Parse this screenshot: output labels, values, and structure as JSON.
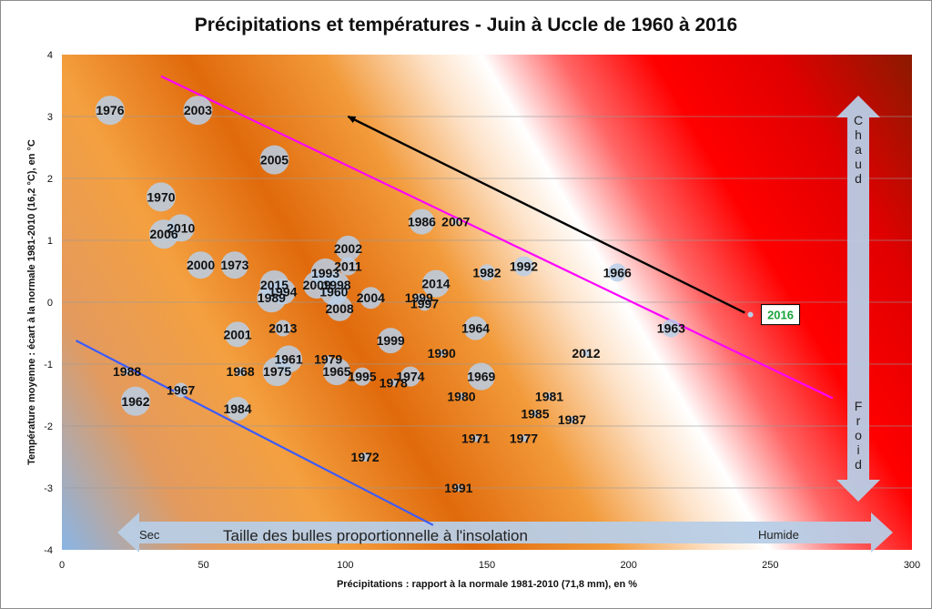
{
  "colors": {
    "magenta_line": "#ff00ff",
    "blue_line": "#3b5bff",
    "bubble": "#b9cfe8",
    "highlight_text": "#1aa33a",
    "arrow_fill": "#b8cde6",
    "dark_red": "#8b1a00",
    "orange": "#e46c0a"
  },
  "chart_data": {
    "type": "scatter",
    "title": "Précipitations et températures - Juin à Uccle de 1960 à 2016",
    "xlabel": "Précipitations : rapport à la normale 1981-2010 (71,8 mm), en %",
    "ylabel": "Température moyenne : écart à  la normale 1981-2010 (16,2 °C), en °C",
    "xlim": [
      0,
      300
    ],
    "ylim": [
      -4,
      4
    ],
    "xticks": [
      "0",
      "50",
      "100",
      "150",
      "200",
      "250",
      "300"
    ],
    "yticks": [
      "4",
      "3",
      "2",
      "1",
      "0",
      "-1",
      "-2",
      "-3",
      "-4"
    ],
    "grid": true,
    "points": [
      {
        "label": "1976",
        "x": 17,
        "y": 3.1,
        "r": 16
      },
      {
        "label": "2003",
        "x": 48,
        "y": 3.1,
        "r": 16
      },
      {
        "label": "2005",
        "x": 75,
        "y": 2.3,
        "r": 16
      },
      {
        "label": "1970",
        "x": 35,
        "y": 1.7,
        "r": 16
      },
      {
        "label": "2010",
        "x": 42,
        "y": 1.2,
        "r": 15
      },
      {
        "label": "2006",
        "x": 36,
        "y": 1.1,
        "r": 16
      },
      {
        "label": "1986",
        "x": 127,
        "y": 1.3,
        "r": 14
      },
      {
        "label": "2007",
        "x": 139,
        "y": 1.3,
        "r": 4
      },
      {
        "label": "2002",
        "x": 101,
        "y": 0.87,
        "r": 14
      },
      {
        "label": "2011",
        "x": 101,
        "y": 0.58,
        "r": 10
      },
      {
        "label": "2000",
        "x": 49,
        "y": 0.6,
        "r": 15
      },
      {
        "label": "1973",
        "x": 61,
        "y": 0.6,
        "r": 15
      },
      {
        "label": "1993",
        "x": 93,
        "y": 0.47,
        "r": 16
      },
      {
        "label": "1982",
        "x": 150,
        "y": 0.48,
        "r": 9
      },
      {
        "label": "1992",
        "x": 163,
        "y": 0.58,
        "r": 11
      },
      {
        "label": "1966",
        "x": 196,
        "y": 0.48,
        "r": 10
      },
      {
        "label": "2014",
        "x": 132,
        "y": 0.3,
        "r": 15
      },
      {
        "label": "2015",
        "x": 75,
        "y": 0.28,
        "r": 16
      },
      {
        "label": "2009",
        "x": 90,
        "y": 0.28,
        "r": 15
      },
      {
        "label": "1998",
        "x": 97,
        "y": 0.28,
        "r": 14
      },
      {
        "label": "1994",
        "x": 78,
        "y": 0.17,
        "r": 14
      },
      {
        "label": "1960",
        "x": 96,
        "y": 0.17,
        "r": 15
      },
      {
        "label": "1989",
        "x": 74,
        "y": 0.07,
        "r": 16
      },
      {
        "label": "2004",
        "x": 109,
        "y": 0.07,
        "r": 12
      },
      {
        "label": "1999",
        "x": 126,
        "y": 0.07,
        "r": 5
      },
      {
        "label": "1997",
        "x": 128,
        "y": -0.02,
        "r": 8
      },
      {
        "label": "2008",
        "x": 98,
        "y": -0.1,
        "r": 14
      },
      {
        "label": "2013",
        "x": 78,
        "y": -0.42,
        "r": 9
      },
      {
        "label": "1964",
        "x": 146,
        "y": -0.42,
        "r": 13
      },
      {
        "label": "1963",
        "x": 215,
        "y": -0.42,
        "r": 10
      },
      {
        "label": "2001",
        "x": 62,
        "y": -0.52,
        "r": 14
      },
      {
        "label": "1999",
        "x": 116,
        "y": -0.62,
        "r": 14
      },
      {
        "label": "1990",
        "x": 134,
        "y": -0.82,
        "r": 4
      },
      {
        "label": "2012",
        "x": 185,
        "y": -0.82,
        "r": 4
      },
      {
        "label": "1961",
        "x": 80,
        "y": -0.92,
        "r": 15
      },
      {
        "label": "1979",
        "x": 94,
        "y": -0.92,
        "r": 4
      },
      {
        "label": "1988",
        "x": 23,
        "y": -1.12,
        "r": 4
      },
      {
        "label": "1968",
        "x": 63,
        "y": -1.12,
        "r": 5
      },
      {
        "label": "1975",
        "x": 76,
        "y": -1.12,
        "r": 16
      },
      {
        "label": "1965",
        "x": 97,
        "y": -1.12,
        "r": 15
      },
      {
        "label": "1995",
        "x": 106,
        "y": -1.2,
        "r": 10
      },
      {
        "label": "1974",
        "x": 123,
        "y": -1.2,
        "r": 11
      },
      {
        "label": "1978",
        "x": 117,
        "y": -1.3,
        "r": 4
      },
      {
        "label": "1969",
        "x": 148,
        "y": -1.2,
        "r": 15
      },
      {
        "label": "1967",
        "x": 42,
        "y": -1.42,
        "r": 8
      },
      {
        "label": "1980",
        "x": 141,
        "y": -1.52,
        "r": 4
      },
      {
        "label": "1981",
        "x": 172,
        "y": -1.52,
        "r": 4
      },
      {
        "label": "1962",
        "x": 26,
        "y": -1.6,
        "r": 16
      },
      {
        "label": "1984",
        "x": 62,
        "y": -1.72,
        "r": 13
      },
      {
        "label": "1985",
        "x": 167,
        "y": -1.8,
        "r": 4
      },
      {
        "label": "1987",
        "x": 180,
        "y": -1.9,
        "r": 4
      },
      {
        "label": "1971",
        "x": 146,
        "y": -2.2,
        "r": 4
      },
      {
        "label": "1977",
        "x": 163,
        "y": -2.2,
        "r": 4
      },
      {
        "label": "1972",
        "x": 107,
        "y": -2.5,
        "r": 5
      },
      {
        "label": "1991",
        "x": 140,
        "y": -3.0,
        "r": 4
      }
    ],
    "highlight": {
      "label": "2016",
      "x": 243,
      "y": -0.2
    },
    "trend_lines": [
      {
        "name": "upper",
        "from": [
          35,
          3.65
        ],
        "to": [
          272,
          -1.55
        ]
      },
      {
        "name": "lower",
        "from": [
          5,
          -0.62
        ],
        "to": [
          131,
          -3.6
        ]
      }
    ],
    "direction_arrow": {
      "from": [
        241,
        -0.17
      ],
      "to": [
        101,
        3.0
      ]
    },
    "annotations": {
      "horizontal_arrow": {
        "text": "Taille des bulles proportionnelle à l'insolation",
        "left": "Sec",
        "right": "Humide"
      },
      "vertical_arrow": {
        "top": "Chaud",
        "bottom": "Froid"
      }
    }
  }
}
